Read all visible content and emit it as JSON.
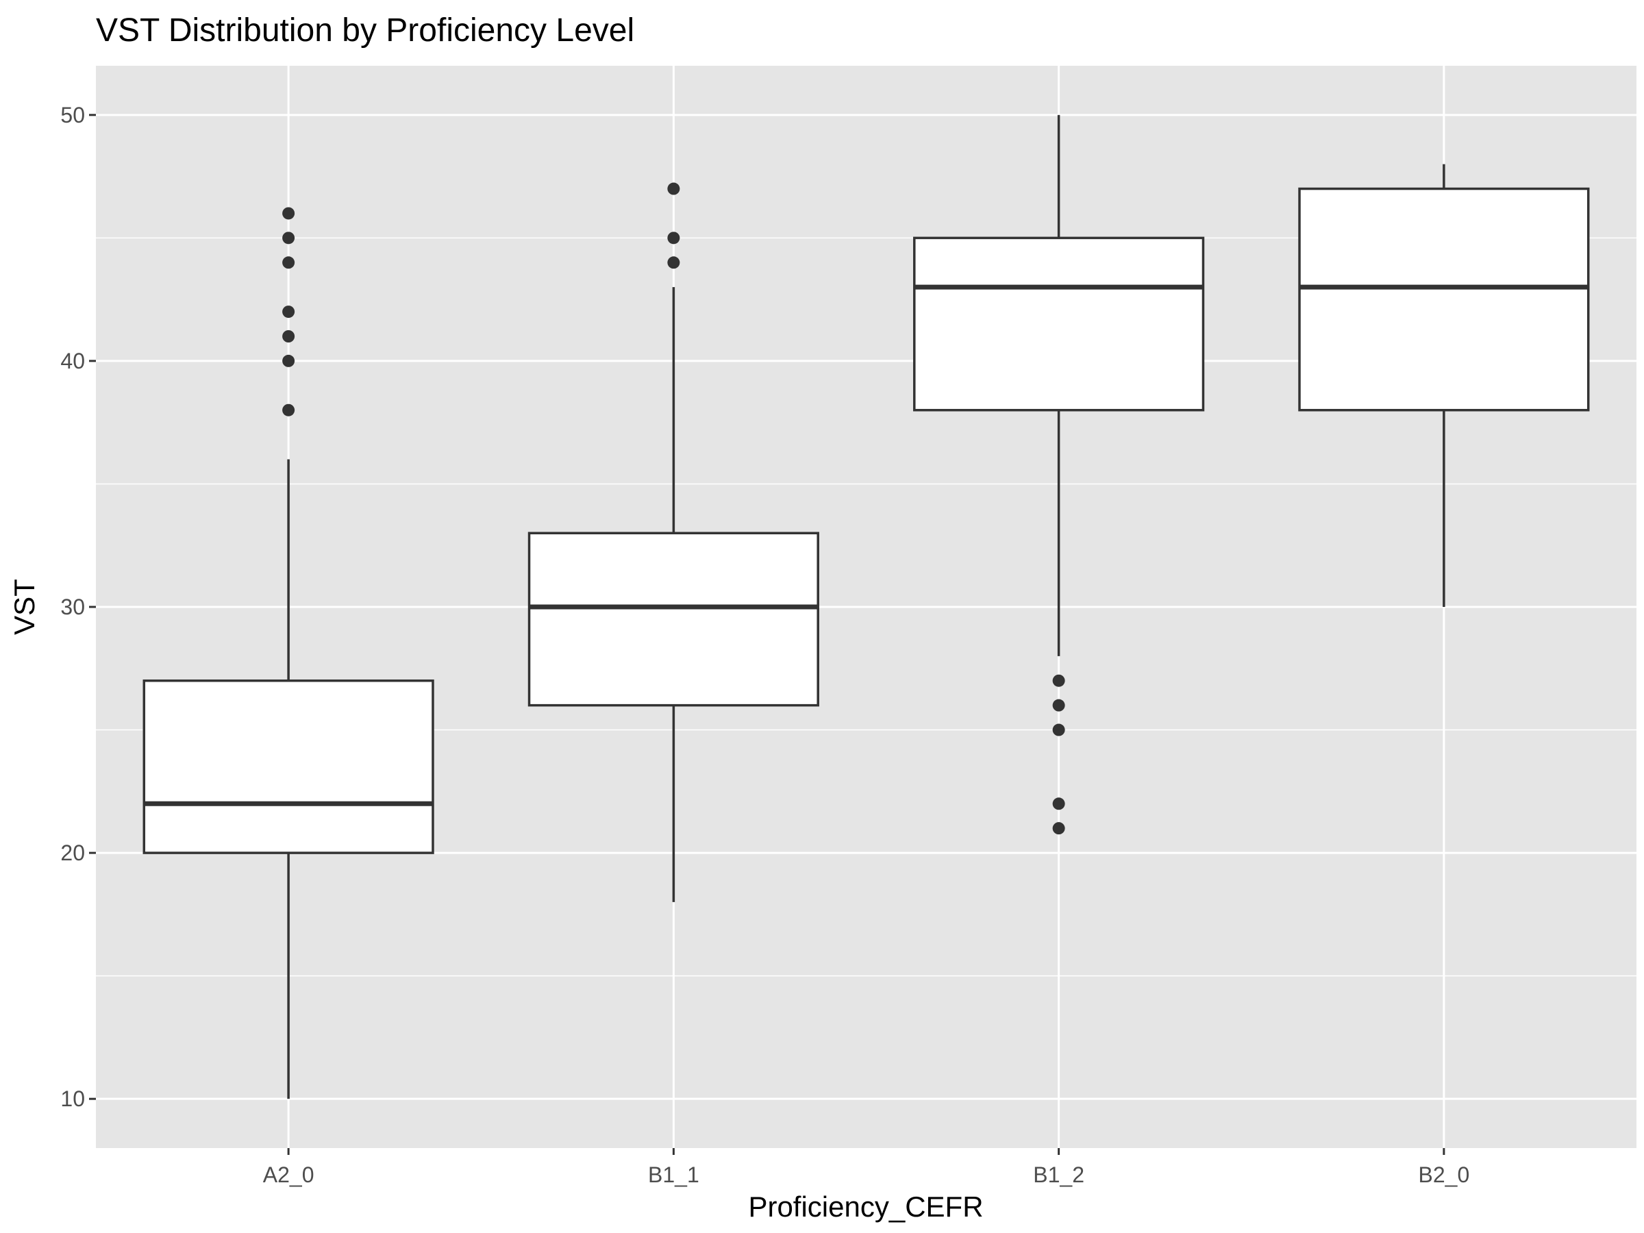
{
  "chart_data": {
    "type": "boxplot",
    "title": "VST Distribution by Proficiency Level",
    "xlabel": "Proficiency_CEFR",
    "ylabel": "VST",
    "ylim": [
      8,
      52
    ],
    "yticks": [
      10,
      20,
      30,
      40,
      50
    ],
    "grid": true,
    "categories": [
      "A2_0",
      "B1_1",
      "B1_2",
      "B2_0"
    ],
    "boxes": [
      {
        "category": "A2_0",
        "whisker_low": 10,
        "q1": 20,
        "median": 22,
        "q3": 27,
        "whisker_high": 36,
        "outliers": [
          38,
          40,
          41,
          42,
          44,
          45,
          46
        ]
      },
      {
        "category": "B1_1",
        "whisker_low": 18,
        "q1": 26,
        "median": 30,
        "q3": 33,
        "whisker_high": 43,
        "outliers": [
          44,
          45,
          47
        ]
      },
      {
        "category": "B1_2",
        "whisker_low": 28,
        "q1": 38,
        "median": 43,
        "q3": 45,
        "whisker_high": 50,
        "outliers": [
          21,
          22,
          25,
          26,
          27
        ]
      },
      {
        "category": "B2_0",
        "whisker_low": 30,
        "q1": 38,
        "median": 43,
        "q3": 47,
        "whisker_high": 48,
        "outliers": []
      }
    ],
    "colors": {
      "panel": "#e5e5e5",
      "grid": "#ffffff",
      "box_fill": "#ffffff",
      "box_line": "#333333",
      "tick_text": "#4d4d4d"
    }
  }
}
